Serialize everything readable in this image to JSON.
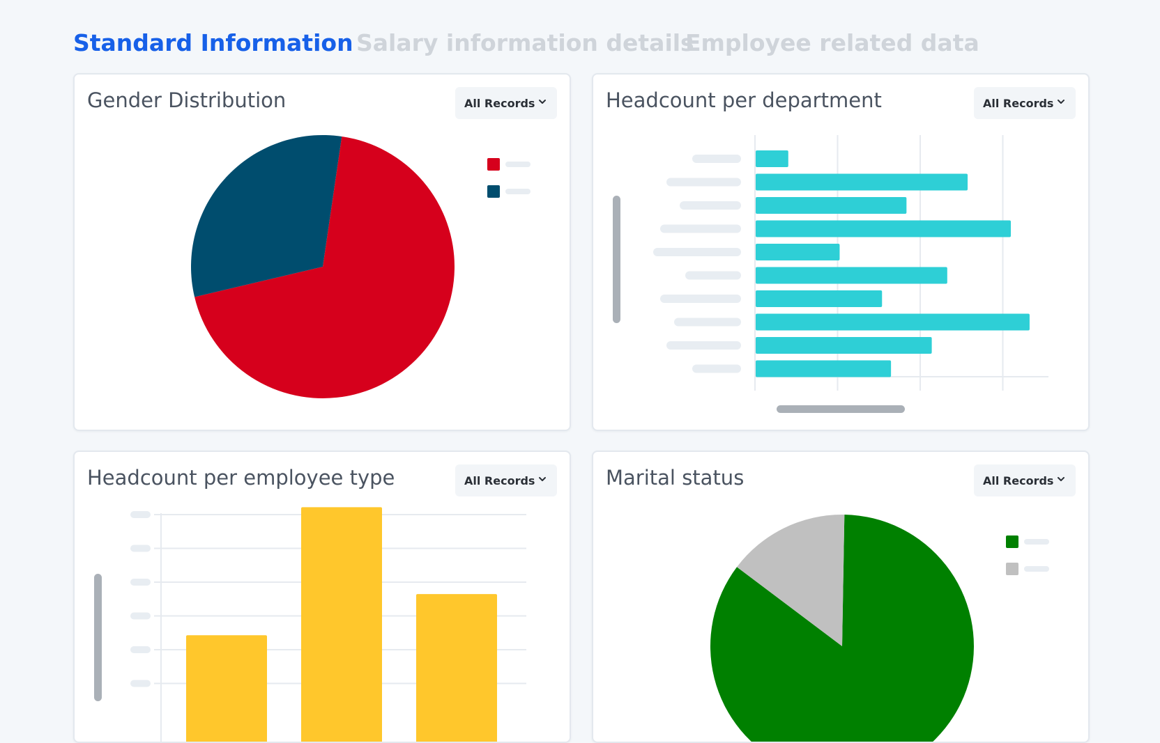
{
  "tabs": [
    {
      "label": "Standard Information",
      "active": true
    },
    {
      "label": "Salary information details",
      "active": false
    },
    {
      "label": "Employee related data",
      "active": false
    }
  ],
  "cards": {
    "gender": {
      "title": "Gender Distribution",
      "filter": "All Records",
      "chart_data": {
        "type": "pie",
        "slices": [
          {
            "value": 69,
            "color": "#d6001c"
          },
          {
            "value": 31,
            "color": "#004d6e"
          }
        ],
        "legend_placement": "top-right"
      }
    },
    "department": {
      "title": "Headcount per department",
      "filter": "All Records",
      "chart_data": {
        "type": "bar",
        "orientation": "horizontal",
        "values": [
          4,
          26,
          18.5,
          31.3,
          10.3,
          23.5,
          15.5,
          33.6,
          21.6,
          16.6
        ],
        "xlim": [
          0,
          36
        ],
        "grid": true,
        "color": "#2ecfd6",
        "category_label_placeholders": true
      }
    },
    "employee_type": {
      "title": "Headcount per employee type",
      "filter": "All Records",
      "chart_data": {
        "type": "bar",
        "orientation": "vertical",
        "values": [
          26,
          54,
          35
        ],
        "ylim": [
          0,
          60
        ],
        "grid": true,
        "color": "#ffc72c"
      }
    },
    "marital": {
      "title": "Marital status",
      "filter": "All Records",
      "chart_data": {
        "type": "pie",
        "slices": [
          {
            "value": 85,
            "color": "#008000"
          },
          {
            "value": 15,
            "color": "#c0c0c0"
          }
        ],
        "legend_placement": "top-right"
      }
    }
  }
}
